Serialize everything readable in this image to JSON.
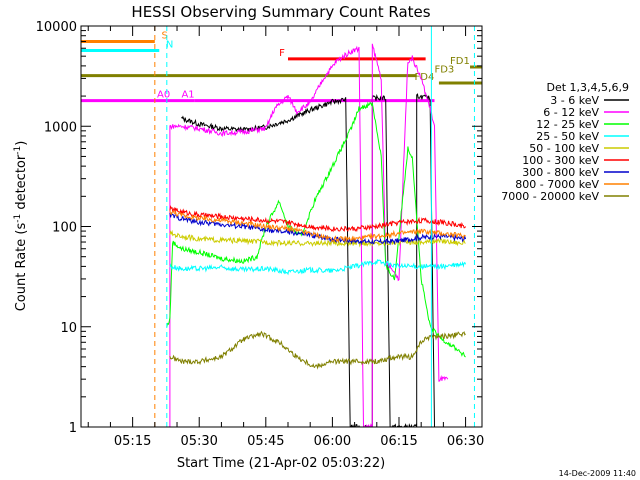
{
  "chart_data": {
    "type": "line",
    "title": "HESSI Observing Summary Count Rates",
    "xlabel": "Start Time (21-Apr-02 05:03:22)",
    "ylabel": "Count Rate (s⁻¹ detector⁻¹)",
    "ylabel_main": "Count Rate (s",
    "ylabel_exp1": "-1",
    "ylabel_mid": " detector",
    "ylabel_exp2": "-1",
    "ylabel_end": ")",
    "x_range_min": [
      3.37,
      51.8
    ],
    "y_range": [
      1,
      10000
    ],
    "y_scale": "log",
    "xtick_labels": [
      {
        "t": 15,
        "label": "05:15"
      },
      {
        "t": 30,
        "label": "05:30"
      },
      {
        "t": 45,
        "label": "05:45"
      },
      {
        "t": 60,
        "label": "06:00"
      },
      {
        "t": 75,
        "label": "06:15"
      },
      {
        "t": 90,
        "label": "06:30"
      }
    ],
    "ytick_labels": [
      {
        "v": 1,
        "label": "1"
      },
      {
        "v": 10,
        "label": "10"
      },
      {
        "v": 100,
        "label": "100"
      },
      {
        "v": 1000,
        "label": "1000"
      },
      {
        "v": 10000,
        "label": "10000"
      }
    ],
    "legend_header": "Det 1,3,4,5,6,9",
    "legend_position": "right",
    "series": [
      {
        "name": "3 - 6 keV",
        "color": "#000000",
        "points": [
          [
            26,
            1200
          ],
          [
            30,
            1050
          ],
          [
            35,
            950
          ],
          [
            40,
            920
          ],
          [
            45,
            980
          ],
          [
            50,
            1150
          ],
          [
            55,
            1450
          ],
          [
            60,
            1750
          ],
          [
            63,
            1850
          ],
          [
            64,
            1
          ],
          [
            69,
            1
          ],
          [
            69,
            1900
          ],
          [
            72,
            1900
          ],
          [
            73,
            1
          ],
          [
            79,
            1
          ],
          [
            79,
            2000
          ],
          [
            82,
            1900
          ],
          [
            83,
            1
          ]
        ]
      },
      {
        "name": "6 - 12 keV",
        "color": "#ff00ff",
        "points": [
          [
            23.4,
            1
          ],
          [
            23.4,
            1000
          ],
          [
            26,
            1000
          ],
          [
            30,
            950
          ],
          [
            35,
            850
          ],
          [
            40,
            880
          ],
          [
            45,
            950
          ],
          [
            47,
            1500
          ],
          [
            50,
            2000
          ],
          [
            52,
            1400
          ],
          [
            55,
            1700
          ],
          [
            58,
            3000
          ],
          [
            61,
            4500
          ],
          [
            64,
            5500
          ],
          [
            66,
            6000
          ],
          [
            67,
            1
          ],
          [
            69,
            1
          ],
          [
            69,
            6500
          ],
          [
            71,
            3000
          ],
          [
            72,
            45
          ],
          [
            75,
            30
          ],
          [
            77,
            4500
          ],
          [
            78,
            4800
          ],
          [
            80,
            3000
          ],
          [
            82,
            1500
          ],
          [
            83,
            1000
          ],
          [
            84,
            3
          ],
          [
            86,
            3
          ]
        ]
      },
      {
        "name": "12 - 25 keV",
        "color": "#00ff00",
        "points": [
          [
            22.7,
            10
          ],
          [
            23.4,
            12
          ],
          [
            24,
            70
          ],
          [
            26,
            60
          ],
          [
            30,
            55
          ],
          [
            35,
            48
          ],
          [
            40,
            45
          ],
          [
            43,
            50
          ],
          [
            45,
            100
          ],
          [
            48,
            180
          ],
          [
            50,
            100
          ],
          [
            53,
            80
          ],
          [
            56,
            180
          ],
          [
            60,
            400
          ],
          [
            64,
            900
          ],
          [
            66,
            1500
          ],
          [
            69,
            1700
          ],
          [
            71,
            500
          ],
          [
            72,
            40
          ],
          [
            74,
            30
          ],
          [
            77,
            600
          ],
          [
            78,
            500
          ],
          [
            80,
            30
          ],
          [
            82,
            10
          ],
          [
            84,
            8
          ],
          [
            88,
            6
          ],
          [
            90,
            5
          ]
        ]
      },
      {
        "name": "25 - 50 keV",
        "color": "#00ffff",
        "points": [
          [
            23.4,
            40
          ],
          [
            26,
            38
          ],
          [
            30,
            38
          ],
          [
            35,
            39
          ],
          [
            40,
            37
          ],
          [
            45,
            38
          ],
          [
            50,
            35
          ],
          [
            55,
            37
          ],
          [
            60,
            36
          ],
          [
            65,
            40
          ],
          [
            70,
            45
          ],
          [
            75,
            40
          ],
          [
            80,
            40
          ],
          [
            85,
            40
          ],
          [
            90,
            42
          ]
        ]
      },
      {
        "name": "50 - 100 keV",
        "color": "#cccc00",
        "points": [
          [
            23.4,
            85
          ],
          [
            26,
            80
          ],
          [
            30,
            75
          ],
          [
            35,
            73
          ],
          [
            40,
            72
          ],
          [
            45,
            70
          ],
          [
            50,
            68
          ],
          [
            55,
            68
          ],
          [
            60,
            68
          ],
          [
            65,
            68
          ],
          [
            70,
            68
          ],
          [
            75,
            70
          ],
          [
            80,
            70
          ],
          [
            85,
            72
          ],
          [
            90,
            68
          ]
        ]
      },
      {
        "name": "100 - 300 keV",
        "color": "#ff0000",
        "points": [
          [
            23.4,
            150
          ],
          [
            26,
            140
          ],
          [
            30,
            130
          ],
          [
            35,
            125
          ],
          [
            40,
            120
          ],
          [
            45,
            115
          ],
          [
            50,
            110
          ],
          [
            55,
            100
          ],
          [
            60,
            95
          ],
          [
            65,
            95
          ],
          [
            70,
            100
          ],
          [
            75,
            110
          ],
          [
            80,
            115
          ],
          [
            85,
            110
          ],
          [
            90,
            100
          ]
        ]
      },
      {
        "name": "300 - 800 keV",
        "color": "#0000cc",
        "points": [
          [
            23.4,
            130
          ],
          [
            26,
            120
          ],
          [
            30,
            110
          ],
          [
            35,
            105
          ],
          [
            40,
            100
          ],
          [
            45,
            92
          ],
          [
            50,
            88
          ],
          [
            55,
            82
          ],
          [
            60,
            75
          ],
          [
            65,
            72
          ],
          [
            70,
            70
          ],
          [
            75,
            72
          ],
          [
            80,
            78
          ],
          [
            85,
            80
          ],
          [
            90,
            75
          ]
        ]
      },
      {
        "name": "800 - 7000 keV",
        "color": "#ff8000",
        "points": [
          [
            23.4,
            140
          ],
          [
            26,
            130
          ],
          [
            30,
            120
          ],
          [
            35,
            115
          ],
          [
            40,
            108
          ],
          [
            45,
            100
          ],
          [
            50,
            95
          ],
          [
            55,
            85
          ],
          [
            60,
            75
          ],
          [
            65,
            75
          ],
          [
            70,
            80
          ],
          [
            75,
            85
          ],
          [
            80,
            90
          ],
          [
            85,
            85
          ],
          [
            90,
            80
          ]
        ]
      },
      {
        "name": "7000 - 20000 keV",
        "color": "#808000",
        "points": [
          [
            23.4,
            5
          ],
          [
            26,
            4.5
          ],
          [
            30,
            4.5
          ],
          [
            35,
            5
          ],
          [
            40,
            7.5
          ],
          [
            44,
            8.5
          ],
          [
            48,
            7
          ],
          [
            52,
            5
          ],
          [
            56,
            4
          ],
          [
            60,
            4.5
          ],
          [
            65,
            4.5
          ],
          [
            70,
            4.5
          ],
          [
            74,
            5
          ],
          [
            78,
            5
          ],
          [
            80,
            7
          ],
          [
            82,
            8
          ],
          [
            85,
            8
          ],
          [
            90,
            8.5
          ]
        ]
      }
    ],
    "flag_bars": [
      {
        "label": "S",
        "color": "#ff8000",
        "t_start": 3.37,
        "t_end": 20,
        "value": 7000,
        "label_t": 21.5
      },
      {
        "label": "N",
        "color": "#00ffff",
        "t_start": 3.37,
        "t_end": 21,
        "value": 5700,
        "label_t": 22.5
      },
      {
        "label": "F",
        "color": "#ff0000",
        "t_start": 50,
        "t_end": 81,
        "value": 4700,
        "label_t": 48
      },
      {
        "label": "A0",
        "color": "#ff00ff",
        "t_start": 3.37,
        "t_end": 29,
        "value": 1800,
        "label_t": 20.5
      },
      {
        "label": "A1",
        "color": "#ff00ff",
        "t_start": 29,
        "t_end": 83,
        "value": 1800,
        "label_t": 26
      },
      {
        "label": "FD1",
        "color": "#808000",
        "t_start": 91,
        "t_end": 93.7,
        "value": 3900,
        "label_t": 86.5
      },
      {
        "label": "FD3",
        "color": "#808000",
        "t_start": 3.37,
        "t_end": 79,
        "value": 3200,
        "label_t": 83
      },
      {
        "label": "FD4",
        "color": "#808000",
        "t_start": 84,
        "t_end": 93.7,
        "value": 2700,
        "label_t": 78.5
      }
    ],
    "vlines": [
      {
        "t": 3.37,
        "color": "#00ffff",
        "dash": false
      },
      {
        "t": 20,
        "color": "#ff8000",
        "dash": true
      },
      {
        "t": 22.7,
        "color": "#00ffff",
        "dash": true
      },
      {
        "t": 82.3,
        "color": "#00ffff",
        "dash": false
      },
      {
        "t": 92,
        "color": "#00ffff",
        "dash": true
      }
    ],
    "timestamp": "14-Dec-2009 11:40"
  }
}
